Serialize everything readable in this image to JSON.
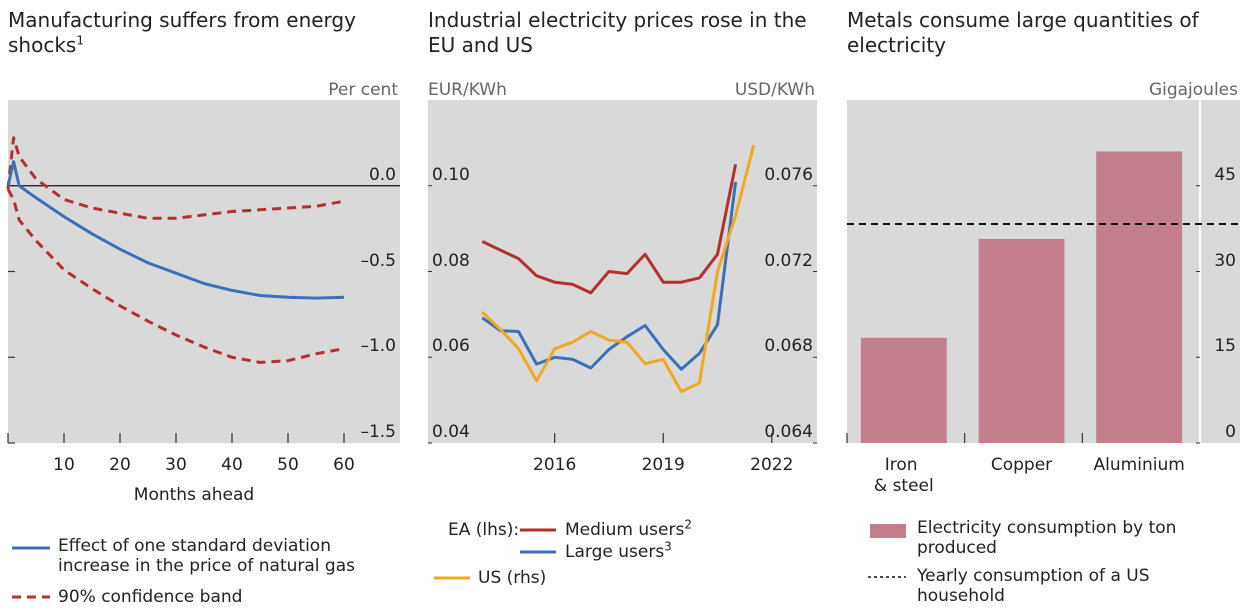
{
  "chart_data": [
    {
      "type": "line",
      "title": "Manufacturing suffers from energy shocks",
      "title_note": "1",
      "unit": "Per cent",
      "xlabel": "Months ahead",
      "x": [
        0,
        1,
        2,
        5,
        10,
        15,
        20,
        25,
        30,
        35,
        40,
        45,
        50,
        55,
        60
      ],
      "xlim": [
        0,
        70
      ],
      "xticks": [
        10,
        20,
        30,
        40,
        50,
        60
      ],
      "ylim": [
        -1.5,
        0.5
      ],
      "yticks": [
        {
          "value": 0,
          "label": "0.0"
        },
        {
          "value": -0.5,
          "label": "–0.5"
        },
        {
          "value": -1,
          "label": "–1.0"
        },
        {
          "value": -1.5,
          "label": "–1.5"
        }
      ],
      "series": [
        {
          "name": "Effect of one standard deviation increase in the price of natural gas",
          "color": "#3b70b9",
          "values": [
            0.0,
            0.14,
            0.0,
            -0.07,
            -0.18,
            -0.28,
            -0.37,
            -0.45,
            -0.51,
            -0.57,
            -0.61,
            -0.64,
            -0.65,
            -0.655,
            -0.65
          ]
        }
      ],
      "band": {
        "name": "90% confidence band",
        "color": "#b2302e",
        "upper": [
          -0.02,
          0.28,
          0.17,
          0.04,
          -0.08,
          -0.13,
          -0.16,
          -0.19,
          -0.19,
          -0.17,
          -0.15,
          -0.14,
          -0.13,
          -0.12,
          -0.09
        ],
        "lower": [
          -0.02,
          -0.08,
          -0.2,
          -0.32,
          -0.49,
          -0.6,
          -0.7,
          -0.79,
          -0.87,
          -0.94,
          -1.0,
          -1.03,
          -1.02,
          -0.98,
          -0.95
        ]
      }
    },
    {
      "type": "line",
      "title": "Industrial electricity prices rose in the EU and US",
      "ylabel": "EUR/KWh",
      "y2label": "USD/KWh",
      "legend_group": "EA (lhs):",
      "xlim": [
        2012.5,
        2023.25
      ],
      "xticks": [
        2016,
        2019,
        2022
      ],
      "ylim": [
        0.04,
        0.12
      ],
      "yticks": [
        0.04,
        0.06,
        0.08,
        {
          "value": 0.1,
          "label": "0.10"
        }
      ],
      "y2lim": [
        0.064,
        0.08
      ],
      "y2ticks": [
        0.064,
        0.068,
        0.072,
        0.076
      ],
      "series": [
        {
          "name": "Medium users",
          "note": "2",
          "color": "#b2302e",
          "x": [
            2014,
            2014.5,
            2015,
            2015.5,
            2016,
            2016.5,
            2017,
            2017.5,
            2018,
            2018.5,
            2019,
            2019.5,
            2020,
            2020.5,
            2021
          ],
          "values": [
            0.087,
            0.085,
            0.083,
            0.079,
            0.0775,
            0.077,
            0.075,
            0.08,
            0.0795,
            0.084,
            0.0775,
            0.0775,
            0.0785,
            0.084,
            0.105
          ]
        },
        {
          "name": "Large users",
          "note": "3",
          "color": "#3b70b9",
          "x": [
            2014,
            2014.5,
            2015,
            2015.5,
            2016,
            2016.5,
            2017,
            2017.5,
            2018,
            2018.5,
            2019,
            2019.5,
            2020,
            2020.5,
            2021
          ],
          "values": [
            0.0692,
            0.0662,
            0.066,
            0.0584,
            0.06,
            0.0595,
            0.0575,
            0.0618,
            0.0648,
            0.0674,
            0.0618,
            0.0572,
            0.0609,
            0.0676,
            0.1009
          ]
        },
        {
          "name": "US (rhs)",
          "color": "#f0a820",
          "axis": "y2",
          "x": [
            2014,
            2014.5,
            2015,
            2015.5,
            2016,
            2016.5,
            2017,
            2017.5,
            2018,
            2018.5,
            2019,
            2019.5,
            2020,
            2020.5,
            2021,
            2021.5
          ],
          "values": [
            0.0701,
            0.0693,
            0.0684,
            0.0669,
            0.0684,
            0.0687,
            0.0692,
            0.0688,
            0.0687,
            0.0677,
            0.0679,
            0.0664,
            0.0668,
            0.072,
            0.0746,
            0.0779
          ]
        }
      ]
    },
    {
      "type": "bar",
      "title": "Metals consume large quantities of electricity",
      "unit": "Gigajoules",
      "categories": [
        "Iron & steel",
        "Copper",
        "Aluminium"
      ],
      "ylim": [
        0,
        60
      ],
      "yticks": [
        0,
        15,
        30,
        45
      ],
      "series": [
        {
          "name": "Electricity consumption by ton produced",
          "color": "#c47f8f",
          "values": [
            18.4,
            35.7,
            51
          ]
        }
      ],
      "reference": {
        "name": "Yearly consumption of a US household",
        "color": "#111",
        "value": 38.3
      }
    }
  ]
}
